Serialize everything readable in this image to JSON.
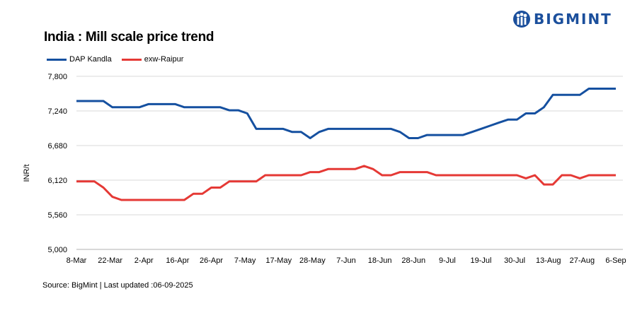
{
  "header": {
    "title": "India : Mill scale price trend",
    "logo_text": "BIGMINT",
    "logo_icon": "bigmint-people-icon"
  },
  "footer": {
    "source": "Source: BigMint | Last updated :06-09-2025"
  },
  "colors": {
    "dap": "#1550a0",
    "raipur": "#e53935",
    "brand": "#1b4f9c"
  },
  "chart_data": {
    "type": "line",
    "title": "India : Mill scale price trend",
    "xlabel": "",
    "ylabel": "INR/t",
    "ylim": [
      5000,
      7800
    ],
    "yticks": [
      "5,000",
      "5,560",
      "6,120",
      "6,680",
      "7,240",
      "7,800"
    ],
    "x_tick_labels": [
      "8-Mar",
      "22-Mar",
      "2-Apr",
      "16-Apr",
      "26-Apr",
      "7-May",
      "17-May",
      "28-May",
      "7-Jun",
      "18-Jun",
      "28-Jun",
      "9-Jul",
      "19-Jul",
      "30-Jul",
      "13-Aug",
      "27-Aug",
      "6-Sep"
    ],
    "legend_position": "top-left",
    "grid": "horizontal",
    "series": [
      {
        "name": "DAP Kandla",
        "color": "#1550a0",
        "values": [
          7400,
          7400,
          7400,
          7400,
          7300,
          7300,
          7300,
          7300,
          7350,
          7350,
          7350,
          7350,
          7300,
          7300,
          7300,
          7300,
          7300,
          7250,
          7250,
          7200,
          6950,
          6950,
          6950,
          6950,
          6900,
          6900,
          6800,
          6900,
          6950,
          6950,
          6950,
          6950,
          6950,
          6950,
          6950,
          6950,
          6900,
          6800,
          6800,
          6850,
          6850,
          6850,
          6850,
          6850,
          6900,
          6950,
          7000,
          7050,
          7100,
          7100,
          7200,
          7200,
          7300,
          7500,
          7500,
          7500,
          7500,
          7600,
          7600,
          7600,
          7600
        ]
      },
      {
        "name": "exw-Raipur",
        "color": "#e53935",
        "values": [
          6100,
          6100,
          6100,
          6000,
          5850,
          5800,
          5800,
          5800,
          5800,
          5800,
          5800,
          5800,
          5800,
          5900,
          5900,
          6000,
          6000,
          6100,
          6100,
          6100,
          6100,
          6200,
          6200,
          6200,
          6200,
          6200,
          6250,
          6250,
          6300,
          6300,
          6300,
          6300,
          6350,
          6300,
          6200,
          6200,
          6250,
          6250,
          6250,
          6250,
          6200,
          6200,
          6200,
          6200,
          6200,
          6200,
          6200,
          6200,
          6200,
          6200,
          6150,
          6200,
          6050,
          6050,
          6200,
          6200,
          6150,
          6200,
          6200,
          6200,
          6200
        ]
      }
    ]
  }
}
